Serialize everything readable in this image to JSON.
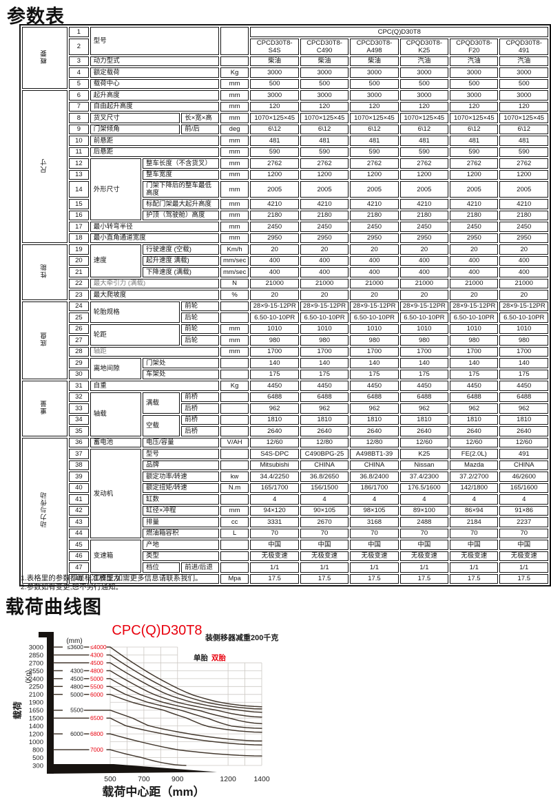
{
  "page": {
    "title": "参数表",
    "chart_heading": "载荷曲线图"
  },
  "notes": [
    "1.表格里的参数都是标准模型,如需更多信息请联系我们。",
    "2.参数如有变更,恕不另行通知。"
  ],
  "table": {
    "rows": [
      {
        "n": "1",
        "g": {
          "t": "概要",
          "r": 5
        },
        "name": [
          {
            "t": "型号",
            "c": 3,
            "r": 2
          }
        ],
        "u": {
          "t": "",
          "r": 2
        },
        "v": [
          {
            "t": "CPC(Q)D30T8",
            "c": 6
          }
        ]
      },
      {
        "n": "2",
        "name": [],
        "v": [
          "CPCD30T8-S4S",
          "CPCD30T8-C490",
          "CPCD30T8-A498",
          "CPQD30T8-K25",
          "CPQD30T8-F20",
          "CPQD30T8-491"
        ]
      },
      {
        "n": "3",
        "name": [
          {
            "t": "动力型式",
            "c": 3
          }
        ],
        "u": "",
        "v": [
          "柴油",
          "柴油",
          "柴油",
          "汽油",
          "汽油",
          "汽油"
        ]
      },
      {
        "n": "4",
        "name": [
          {
            "t": "额定载荷",
            "c": 3
          }
        ],
        "u": "Kg",
        "v": [
          "3000",
          "3000",
          "3000",
          "3000",
          "3000",
          "3000"
        ]
      },
      {
        "n": "5",
        "name": [
          {
            "t": "载荷中心",
            "c": 3
          }
        ],
        "u": "mm",
        "v": [
          "500",
          "500",
          "500",
          "500",
          "500",
          "500"
        ]
      },
      {
        "n": "6",
        "g": {
          "t": "尺寸",
          "r": 13
        },
        "name": [
          {
            "t": "起升高度",
            "c": 3
          }
        ],
        "u": "mm",
        "v": [
          "3000",
          "3000",
          "3000",
          "3000",
          "3000",
          "3000"
        ]
      },
      {
        "n": "7",
        "name": [
          {
            "t": "自由起升高度",
            "c": 3
          }
        ],
        "u": "mm",
        "v": [
          "120",
          "120",
          "120",
          "120",
          "120",
          "120"
        ]
      },
      {
        "n": "8",
        "name": [
          {
            "t": "货叉尺寸",
            "c": 2
          },
          {
            "t": "长×宽×高"
          }
        ],
        "u": "mm",
        "v": [
          "1070×125×45",
          "1070×125×45",
          "1070×125×45",
          "1070×125×45",
          "1070×125×45",
          "1070×125×45"
        ]
      },
      {
        "n": "9",
        "name": [
          {
            "t": "门架倾角",
            "c": 2
          },
          {
            "t": "前/后"
          }
        ],
        "u": "deg",
        "v": [
          "6\\12",
          "6\\12",
          "6\\12",
          "6\\12",
          "6\\12",
          "6\\12"
        ]
      },
      {
        "n": "10",
        "name": [
          {
            "t": "前悬距",
            "c": 3
          }
        ],
        "u": "mm",
        "v": [
          "481",
          "481",
          "481",
          "481",
          "481",
          "481"
        ]
      },
      {
        "n": "11",
        "name": [
          {
            "t": "后悬距",
            "c": 3
          }
        ],
        "u": "mm",
        "v": [
          "590",
          "590",
          "590",
          "590",
          "590",
          "590"
        ]
      },
      {
        "n": "12",
        "name": [
          {
            "t": "外形尺寸",
            "r": 5
          },
          {
            "t": "整车长度（不含货叉）",
            "c": 2
          }
        ],
        "u": "mm",
        "v": [
          "2762",
          "2762",
          "2762",
          "2762",
          "2762",
          "2762"
        ]
      },
      {
        "n": "13",
        "name": [
          {
            "t": "整车宽度",
            "c": 2
          }
        ],
        "u": "mm",
        "v": [
          "1200",
          "1200",
          "1200",
          "1200",
          "1200",
          "1200"
        ]
      },
      {
        "n": "14",
        "name": [
          {
            "t": "门架下降后的整车最低高度",
            "c": 2
          }
        ],
        "u": "mm",
        "v": [
          "2005",
          "2005",
          "2005",
          "2005",
          "2005",
          "2005"
        ]
      },
      {
        "n": "15",
        "name": [
          {
            "t": "标配门架最大起升高度",
            "c": 2
          }
        ],
        "u": "mm",
        "v": [
          "4210",
          "4210",
          "4210",
          "4210",
          "4210",
          "4210"
        ]
      },
      {
        "n": "16",
        "name": [
          {
            "t": "护顶（驾驶舱）高度",
            "c": 2
          }
        ],
        "u": "mm",
        "v": [
          "2180",
          "2180",
          "2180",
          "2180",
          "2180",
          "2180"
        ]
      },
      {
        "n": "17",
        "name": [
          {
            "t": "最小转弯半径",
            "c": 3
          }
        ],
        "u": "mm",
        "v": [
          "2450",
          "2450",
          "2450",
          "2450",
          "2450",
          "2450"
        ]
      },
      {
        "n": "18",
        "name": [
          {
            "t": "最小直角通道宽度",
            "c": 3
          }
        ],
        "u": "mm",
        "v": [
          "2950",
          "2950",
          "2950",
          "2950",
          "2950",
          "2950"
        ]
      },
      {
        "n": "19",
        "g": {
          "t": "性能",
          "r": 5
        },
        "name": [
          {
            "t": "速度",
            "r": 3
          },
          {
            "t": "行驶速度 (空载)",
            "c": 2
          }
        ],
        "u": "Km/h",
        "v": [
          "20",
          "20",
          "20",
          "20",
          "20",
          "20"
        ]
      },
      {
        "n": "20",
        "name": [
          {
            "t": "起升速度 满载)",
            "c": 2
          }
        ],
        "u": "mm/sec",
        "v": [
          "400",
          "400",
          "400",
          "400",
          "400",
          "400"
        ]
      },
      {
        "n": "21",
        "name": [
          {
            "t": "下降速度 (满载)",
            "c": 2
          }
        ],
        "u": "mm/sec",
        "v": [
          "400",
          "400",
          "400",
          "400",
          "400",
          "400"
        ]
      },
      {
        "n": "22",
        "name": [
          {
            "t": "最大牵引力 (满载)",
            "c": 3,
            "dim": true
          }
        ],
        "u": "N",
        "v": [
          "21000",
          "21000",
          "21000",
          "21000",
          "21000",
          "21000"
        ]
      },
      {
        "n": "23",
        "name": [
          {
            "t": "最大爬坡度",
            "c": 3
          }
        ],
        "u": "%",
        "v": [
          "20",
          "20",
          "20",
          "20",
          "20",
          "20"
        ]
      },
      {
        "n": "24",
        "g": {
          "t": "底盘",
          "r": 7
        },
        "name": [
          {
            "t": "轮胎规格",
            "c": 2,
            "r": 2
          },
          {
            "t": "前轮"
          }
        ],
        "u": "",
        "v": [
          "28×9-15-12PR",
          "28×9-15-12PR",
          "28×9-15-12PR",
          "28×9-15-12PR",
          "28×9-15-12PR",
          "28×9-15-12PR"
        ]
      },
      {
        "n": "25",
        "name": [
          {
            "t": "后轮"
          }
        ],
        "u": "",
        "v": [
          "6.50-10-10PR",
          "6.50-10-10PR",
          "6.50-10-10PR",
          "6.50-10-10PR",
          "6.50-10-10PR",
          "6.50-10-10PR"
        ]
      },
      {
        "n": "26",
        "name": [
          {
            "t": "轮距",
            "c": 2,
            "r": 2
          },
          {
            "t": "前轮"
          }
        ],
        "u": "mm",
        "v": [
          "1010",
          "1010",
          "1010",
          "1010",
          "1010",
          "1010"
        ]
      },
      {
        "n": "27",
        "name": [
          {
            "t": "后轮"
          }
        ],
        "u": "mm",
        "v": [
          "980",
          "980",
          "980",
          "980",
          "980",
          "980"
        ]
      },
      {
        "n": "28",
        "name": [
          {
            "t": "轴距",
            "c": 3,
            "dim": true
          }
        ],
        "u": "mm",
        "v": [
          "1700",
          "1700",
          "1700",
          "1700",
          "1700",
          "1700"
        ]
      },
      {
        "n": "29",
        "name": [
          {
            "t": "离地间隙",
            "r": 2
          },
          {
            "t": "门架处",
            "c": 2
          }
        ],
        "u": "",
        "v": [
          "140",
          "140",
          "140",
          "140",
          "140",
          "140"
        ]
      },
      {
        "n": "30",
        "name": [
          {
            "t": "车架处",
            "c": 2
          }
        ],
        "u": "",
        "v": [
          "175",
          "175",
          "175",
          "175",
          "175",
          "175"
        ]
      },
      {
        "n": "31",
        "g": {
          "t": "重量",
          "r": 5
        },
        "name": [
          {
            "t": "自重",
            "c": 3
          }
        ],
        "u": "Kg",
        "v": [
          "4450",
          "4450",
          "4450",
          "4450",
          "4450",
          "4450"
        ]
      },
      {
        "n": "32",
        "name": [
          {
            "t": "轴载",
            "r": 4
          },
          {
            "t": "满载",
            "r": 2
          },
          {
            "t": "前桥"
          }
        ],
        "u": "",
        "v": [
          "6488",
          "6488",
          "6488",
          "6488",
          "6488",
          "6488"
        ]
      },
      {
        "n": "33",
        "name": [
          {
            "t": "后桥"
          }
        ],
        "u": "",
        "v": [
          "962",
          "962",
          "962",
          "962",
          "962",
          "962"
        ]
      },
      {
        "n": "34",
        "name": [
          {
            "t": "空载",
            "r": 2
          },
          {
            "t": "前桥"
          }
        ],
        "u": "",
        "v": [
          "1810",
          "1810",
          "1810",
          "1810",
          "1810",
          "1810"
        ]
      },
      {
        "n": "35",
        "name": [
          {
            "t": "后桥"
          }
        ],
        "u": "",
        "v": [
          "2640",
          "2640",
          "2640",
          "2640",
          "2640",
          "2640"
        ]
      },
      {
        "n": "36",
        "g": {
          "t": "动力与传动",
          "r": 13
        },
        "name": [
          {
            "t": "蓄电池"
          },
          {
            "t": "电压/容量",
            "c": 2
          }
        ],
        "u": "V/AH",
        "v": [
          "12/60",
          "12/80",
          "12/80",
          "12/60",
          "12/60",
          "12/60"
        ]
      },
      {
        "n": "37",
        "name": [
          {
            "t": "发动机",
            "r": 8
          },
          {
            "t": "型号",
            "c": 2
          }
        ],
        "u": "",
        "v": [
          "S4S-DPC",
          "C490BPG-25",
          "A498BT1-39",
          "K25",
          "FE(2.0L)",
          "491"
        ]
      },
      {
        "n": "38",
        "name": [
          {
            "t": "品牌",
            "c": 2
          }
        ],
        "u": "",
        "v": [
          "Mitsubishi",
          "CHINA",
          "CHINA",
          "Nissan",
          "Mazda",
          "CHINA"
        ]
      },
      {
        "n": "39",
        "name": [
          {
            "t": "额定功率/转速",
            "c": 2
          }
        ],
        "u": "kw",
        "v": [
          "34.4/2250",
          "36.8/2650",
          "36.8/2400",
          "37.4/2300",
          "37.2/2700",
          "46/2600"
        ]
      },
      {
        "n": "40",
        "name": [
          {
            "t": "额定扭矩/转速",
            "c": 2
          }
        ],
        "u": "N.m",
        "v": [
          "165/1700",
          "156/1500",
          "186/1700",
          "176.5/1600",
          "142/1800",
          "165/1600"
        ]
      },
      {
        "n": "41",
        "name": [
          {
            "t": "缸数",
            "c": 2
          }
        ],
        "u": "",
        "v": [
          "4",
          "4",
          "4",
          "4",
          "4",
          "4"
        ]
      },
      {
        "n": "42",
        "name": [
          {
            "t": "缸径×冲程",
            "c": 2
          }
        ],
        "u": "mm",
        "v": [
          "94×120",
          "90×105",
          "98×105",
          "89×100",
          "86×94",
          "91×86"
        ]
      },
      {
        "n": "43",
        "name": [
          {
            "t": "排量",
            "c": 2
          }
        ],
        "u": "cc",
        "v": [
          "3331",
          "2670",
          "3168",
          "2488",
          "2184",
          "2237"
        ]
      },
      {
        "n": "44",
        "name": [
          {
            "t": "燃油箱容积",
            "c": 2
          }
        ],
        "u": "L",
        "v": [
          "70",
          "70",
          "70",
          "70",
          "70",
          "70"
        ]
      },
      {
        "n": "45",
        "name": [
          {
            "t": "变速箱",
            "r": 3
          },
          {
            "t": "产地",
            "c": 2
          }
        ],
        "u": "",
        "v": [
          "中国",
          "中国",
          "中国",
          "中国",
          "中国",
          "中国"
        ]
      },
      {
        "n": "46",
        "name": [
          {
            "t": "类型",
            "c": 2
          }
        ],
        "u": "",
        "v": [
          "无极变速",
          "无极变速",
          "无极变速",
          "无极变速",
          "无极变速",
          "无极变速"
        ]
      },
      {
        "n": "47",
        "name": [
          {
            "t": "档位"
          },
          {
            "t": "前进/后退"
          }
        ],
        "u": "",
        "v": [
          "1/1",
          "1/1",
          "1/1",
          "1/1",
          "1/1",
          "1/1"
        ]
      },
      {
        "n": "48",
        "name": [
          {
            "t": "工作压力",
            "c": 3
          }
        ],
        "u": "Mpa",
        "v": [
          "17.5",
          "17.5",
          "17.5",
          "17.5",
          "17.5",
          "17.5"
        ]
      }
    ]
  },
  "chart_data": {
    "type": "line",
    "title": "CPC(Q)D30T8",
    "subtitle": "装侧移器减重200千克",
    "legend": [
      {
        "label": "单胎",
        "color": "#1a1a1a"
      },
      {
        "label": "双胎",
        "color": "#e8000d"
      }
    ],
    "mast_unit_label": "(mm)",
    "ylabel": "载荷",
    "ylabel_unit": "(Kg)",
    "xlabel": "载荷中心距（mm）",
    "x_ticks": [
      500,
      700,
      900,
      1200,
      1400
    ],
    "y_ticks": [
      3000,
      2850,
      2700,
      2550,
      2400,
      2250,
      2100,
      1900,
      1650,
      1500,
      1400,
      1200,
      1000,
      800,
      500,
      300
    ],
    "x_range_mm": [
      500,
      1400
    ],
    "grid": true,
    "accent_red": "#e8000d",
    "curve_color": "#43382e",
    "series": [
      {
        "load": 3000,
        "single": "≤3600",
        "double": "≤4000",
        "end": 1760
      },
      {
        "load": 2850,
        "single": null,
        "double": "4300",
        "end": 1690
      },
      {
        "load": 2700,
        "single": null,
        "double": "4500",
        "end": 1610
      },
      {
        "load": 2550,
        "single": "4300",
        "double": "4800",
        "end": 1520
      },
      {
        "load": 2400,
        "single": "4500",
        "double": "5000",
        "end": 1430
      },
      {
        "load": 2250,
        "single": "4800",
        "double": "5500",
        "end": 1340
      },
      {
        "load": 2100,
        "single": "5000",
        "double": "6000",
        "end": 1240
      },
      {
        "load": 1650,
        "single": "5500",
        "double": null,
        "end": 1020
      },
      {
        "load": 1500,
        "single": null,
        "double": "6500",
        "end": 920
      },
      {
        "load": 1200,
        "single": "6000",
        "double": "6800",
        "end": 560
      },
      {
        "load": 800,
        "single": null,
        "double": "7000",
        "end": 300,
        "x_end": 950
      }
    ]
  }
}
